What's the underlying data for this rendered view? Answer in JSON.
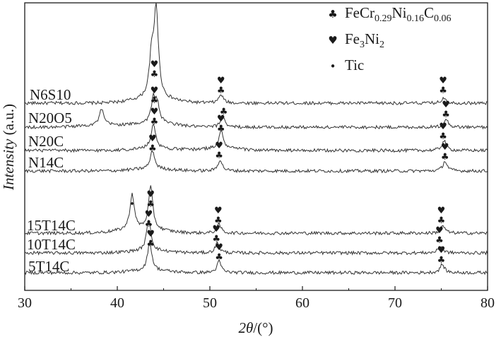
{
  "chart_data": {
    "type": "line",
    "xlabel_italic": "2θ",
    "xlabel_unit": "/(°)",
    "ylabel_italic": "Intensity",
    "ylabel_unit": " (a.u.)",
    "xlim": [
      30,
      80
    ],
    "xticks": [
      30,
      40,
      50,
      60,
      70,
      80
    ],
    "y_ticks_shown": false,
    "grid": false,
    "legend_position": "top-right",
    "legend": [
      {
        "marker": "club",
        "symbol": "♣",
        "label_parts": [
          [
            "FeCr",
            ""
          ],
          [
            "0.29",
            "sub"
          ],
          [
            "Ni",
            ""
          ],
          [
            "0.16",
            "sub"
          ],
          [
            "C",
            ""
          ],
          [
            "0.06",
            "sub"
          ]
        ]
      },
      {
        "marker": "heart",
        "symbol": "♥",
        "label_parts": [
          [
            "Fe",
            ""
          ],
          [
            "3",
            "sub"
          ],
          [
            "Ni",
            ""
          ],
          [
            "2",
            "sub"
          ]
        ]
      },
      {
        "marker": "dot",
        "symbol": "•",
        "label_parts": [
          [
            "Tic",
            ""
          ]
        ]
      }
    ],
    "series": [
      {
        "name": "N6S10",
        "peaks": [
          [
            43.7,
            0.55
          ],
          [
            44.2,
            1.25
          ],
          [
            51.2,
            0.12
          ],
          [
            75.3,
            0.08
          ]
        ],
        "markers": [
          {
            "symbol": "♥",
            "x": 44.0
          },
          {
            "symbol": "♣",
            "x": 44.0
          },
          {
            "symbol": "♥",
            "x": 51.2
          },
          {
            "symbol": "♣",
            "x": 51.2
          },
          {
            "symbol": "♥",
            "x": 75.2
          },
          {
            "symbol": "♣",
            "x": 75.2
          }
        ]
      },
      {
        "name": "N20O5",
        "peaks": [
          [
            38.3,
            0.22
          ],
          [
            43.9,
            0.32
          ],
          [
            44.3,
            0.25
          ],
          [
            51.4,
            0.16
          ],
          [
            75.5,
            0.12
          ]
        ],
        "markers": [
          {
            "symbol": "♥",
            "x": 44.0
          },
          {
            "symbol": "♣",
            "x": 44.0
          },
          {
            "symbol": "♣",
            "x": 51.5
          },
          {
            "symbol": "♥",
            "x": 75.5
          },
          {
            "symbol": "♣",
            "x": 75.5
          }
        ]
      },
      {
        "name": "N20C",
        "peaks": [
          [
            43.9,
            0.36
          ],
          [
            51.2,
            0.25
          ],
          [
            75.3,
            0.14
          ]
        ],
        "markers": [
          {
            "symbol": "♥",
            "x": 44.0
          },
          {
            "symbol": "♣",
            "x": 44.0
          },
          {
            "symbol": "♥",
            "x": 51.2
          },
          {
            "symbol": "♣",
            "x": 51.2
          },
          {
            "symbol": "♥",
            "x": 75.2
          },
          {
            "symbol": "♣",
            "x": 75.2
          }
        ]
      },
      {
        "name": "N14C",
        "peaks": [
          [
            43.8,
            0.26
          ],
          [
            51.1,
            0.16
          ],
          [
            75.4,
            0.14
          ]
        ],
        "markers": [
          {
            "symbol": "♥",
            "x": 43.8
          },
          {
            "symbol": "♣",
            "x": 43.8
          },
          {
            "symbol": "♥",
            "x": 51.0
          },
          {
            "symbol": "♣",
            "x": 51.0
          },
          {
            "symbol": "♥",
            "x": 75.4
          },
          {
            "symbol": "♣",
            "x": 75.4
          }
        ]
      },
      {
        "name": "15T14C",
        "peaks": [
          [
            41.6,
            0.5
          ],
          [
            43.6,
            0.6
          ],
          [
            51.0,
            0.12
          ],
          [
            75.2,
            0.1
          ]
        ],
        "markers": [
          {
            "symbol": "•",
            "x": 41.6
          },
          {
            "symbol": "♥",
            "x": 43.6
          },
          {
            "symbol": "♣",
            "x": 43.6
          },
          {
            "symbol": "♥",
            "x": 50.9
          },
          {
            "symbol": "♣",
            "x": 50.9
          },
          {
            "symbol": "♥",
            "x": 75.0
          },
          {
            "symbol": "♣",
            "x": 75.0
          }
        ]
      },
      {
        "name": "10T14C",
        "peaks": [
          [
            43.4,
            0.45
          ],
          [
            50.8,
            0.14
          ],
          [
            74.9,
            0.1
          ]
        ],
        "markers": [
          {
            "symbol": "♥",
            "x": 43.4
          },
          {
            "symbol": "♣",
            "x": 43.4
          },
          {
            "symbol": "♥",
            "x": 50.7
          },
          {
            "symbol": "♣",
            "x": 50.7
          },
          {
            "symbol": "♥",
            "x": 74.8
          },
          {
            "symbol": "♣",
            "x": 74.8
          }
        ]
      },
      {
        "name": "5T14C",
        "peaks": [
          [
            43.5,
            0.4
          ],
          [
            51.0,
            0.16
          ],
          [
            75.1,
            0.12
          ]
        ],
        "markers": [
          {
            "symbol": "♥",
            "x": 43.6
          },
          {
            "symbol": "♣",
            "x": 43.6
          },
          {
            "symbol": "♥",
            "x": 51.0
          },
          {
            "symbol": "♣",
            "x": 51.0
          },
          {
            "symbol": "♥",
            "x": 75.0
          },
          {
            "symbol": "♣",
            "x": 75.0
          }
        ]
      }
    ]
  }
}
